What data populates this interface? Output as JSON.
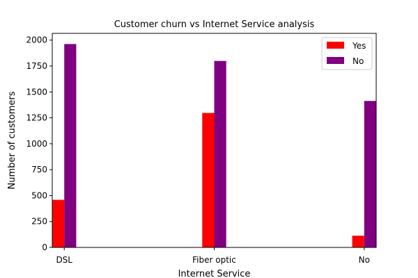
{
  "chart_data": {
    "type": "bar",
    "title": "Customer churn vs Internet Service analysis",
    "xlabel": "Internet Service",
    "ylabel": "Number of customers",
    "categories": [
      "DSL",
      "Fiber optic",
      "No"
    ],
    "x_positions": [
      0,
      1,
      2
    ],
    "xlim": [
      -0.08,
      2.08
    ],
    "ylim": [
      0,
      2065
    ],
    "yticks": [
      0,
      250,
      500,
      750,
      1000,
      1250,
      1500,
      1750,
      2000
    ],
    "series": [
      {
        "name": "Yes",
        "color": "#ff0000",
        "values": [
          459,
          1297,
          113
        ]
      },
      {
        "name": "No",
        "color": "#800080",
        "values": [
          1962,
          1799,
          1413
        ]
      }
    ],
    "legend": "top-right",
    "grid": false
  }
}
